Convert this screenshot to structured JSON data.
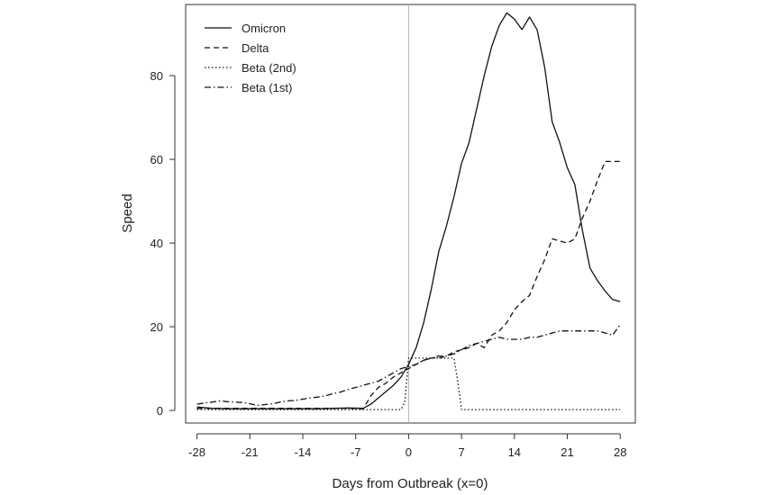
{
  "chart_data": {
    "type": "line",
    "xlabel": "Days from Outbreak (x=0)",
    "ylabel": "Speed",
    "xlim": [
      -29.5,
      30
    ],
    "ylim": [
      -3,
      97
    ],
    "x_ticks": [
      -28,
      -21,
      -14,
      -7,
      0,
      7,
      14,
      21,
      28
    ],
    "x_tick_labels": [
      "-28",
      "-21",
      "-14",
      "-7",
      "0",
      "7",
      "14",
      "21",
      "28"
    ],
    "y_ticks": [
      0,
      20,
      40,
      60,
      80
    ],
    "y_tick_labels": [
      "0",
      "20",
      "40",
      "60",
      "80"
    ],
    "reference_line_x": 0,
    "grid": false,
    "legend_position": "top-left",
    "series": [
      {
        "name": "Omicron",
        "linestyle": "solid",
        "x": [
          -28,
          -26,
          -24,
          -22,
          -20,
          -18,
          -16,
          -14,
          -12,
          -10,
          -8,
          -6,
          -5,
          -4,
          -3,
          -2,
          -1,
          0,
          1,
          2,
          3,
          4,
          5,
          6,
          7,
          8,
          9,
          10,
          11,
          12,
          13,
          14,
          15,
          16,
          17,
          18,
          19,
          20,
          21,
          22,
          23,
          24,
          25,
          26,
          27,
          28
        ],
        "y": [
          0.8,
          0.5,
          0.4,
          0.4,
          0.4,
          0.4,
          0.4,
          0.4,
          0.4,
          0.5,
          0.6,
          0.5,
          1.5,
          3,
          4.5,
          6,
          8,
          11,
          15,
          21,
          29,
          38,
          44,
          51,
          59,
          64,
          72,
          80,
          87,
          92,
          95,
          93.5,
          91,
          94,
          91,
          82,
          69,
          64,
          58,
          54,
          43,
          34,
          31,
          28.5,
          26.5,
          26
        ]
      },
      {
        "name": "Delta",
        "linestyle": "dashed",
        "x": [
          -28,
          -26,
          -24,
          -22,
          -20,
          -18,
          -16,
          -14,
          -12,
          -10,
          -8,
          -6,
          -5,
          -4,
          -3,
          -2,
          -1,
          0,
          1,
          2,
          3,
          4,
          5,
          6,
          7,
          8,
          9,
          10,
          11,
          12,
          13,
          14,
          15,
          16,
          17,
          18,
          19,
          20,
          21,
          22,
          23,
          24,
          25,
          26,
          27,
          28
        ],
        "y": [
          0.5,
          0.5,
          0.5,
          0.5,
          0.5,
          0.5,
          0.5,
          0.5,
          0.5,
          0.5,
          0.5,
          0.4,
          3.5,
          5.5,
          6.5,
          8,
          9,
          10,
          11,
          12,
          12.5,
          12.5,
          13,
          14,
          14.5,
          15,
          16,
          15,
          18,
          19,
          21,
          24,
          26,
          27.5,
          32,
          36,
          41,
          40.5,
          40,
          41,
          46,
          50,
          55,
          59.5,
          59.5,
          59.5
        ]
      },
      {
        "name": "Beta (2nd)",
        "linestyle": "dotted",
        "x": [
          -28,
          -26,
          -24,
          -22,
          -20,
          -18,
          -16,
          -14,
          -12,
          -10,
          -8,
          -6,
          -4,
          -2,
          -1,
          -0.5,
          0,
          1,
          2,
          3,
          4,
          5,
          6,
          6.5,
          7,
          8,
          10,
          12,
          14,
          16,
          18,
          20,
          22,
          24,
          26,
          28
        ],
        "y": [
          0.2,
          0.2,
          0.2,
          0.2,
          0.2,
          0.2,
          0.2,
          0.2,
          0.2,
          0.2,
          0.2,
          0.2,
          0.2,
          0.2,
          0.2,
          2,
          12.5,
          12.5,
          12.5,
          12.5,
          12.5,
          12.5,
          12.5,
          7,
          0.2,
          0.2,
          0.2,
          0.2,
          0.2,
          0.2,
          0.2,
          0.2,
          0.2,
          0.2,
          0.2,
          0.2
        ]
      },
      {
        "name": "Beta (1st)",
        "linestyle": "dashdot",
        "x": [
          -28,
          -27,
          -26,
          -25,
          -24,
          -23,
          -22,
          -21,
          -20,
          -19,
          -18,
          -17,
          -16,
          -15,
          -14,
          -13,
          -12,
          -11,
          -10,
          -9,
          -8,
          -7,
          -6,
          -5,
          -4,
          -3,
          -2,
          -1,
          0,
          1,
          2,
          3,
          4,
          5,
          6,
          7,
          8,
          9,
          10,
          11,
          12,
          13,
          14,
          15,
          16,
          17,
          18,
          19,
          20,
          21,
          22,
          23,
          24,
          25,
          26,
          27,
          28
        ],
        "y": [
          1.5,
          1.8,
          2,
          2.3,
          2.1,
          2,
          1.9,
          1.6,
          1.2,
          1.4,
          1.6,
          2,
          2.3,
          2.4,
          2.7,
          3,
          3.2,
          3.5,
          4,
          4.4,
          5,
          5.5,
          6,
          6.5,
          7,
          8,
          9,
          10,
          10.5,
          11,
          12,
          12.5,
          13,
          13,
          13.5,
          14.5,
          15.5,
          16,
          16.5,
          17,
          17.5,
          17,
          17,
          17,
          17.5,
          17.5,
          18,
          18.5,
          19,
          19,
          19,
          19,
          19,
          19,
          18.5,
          18,
          20.5
        ]
      }
    ]
  }
}
